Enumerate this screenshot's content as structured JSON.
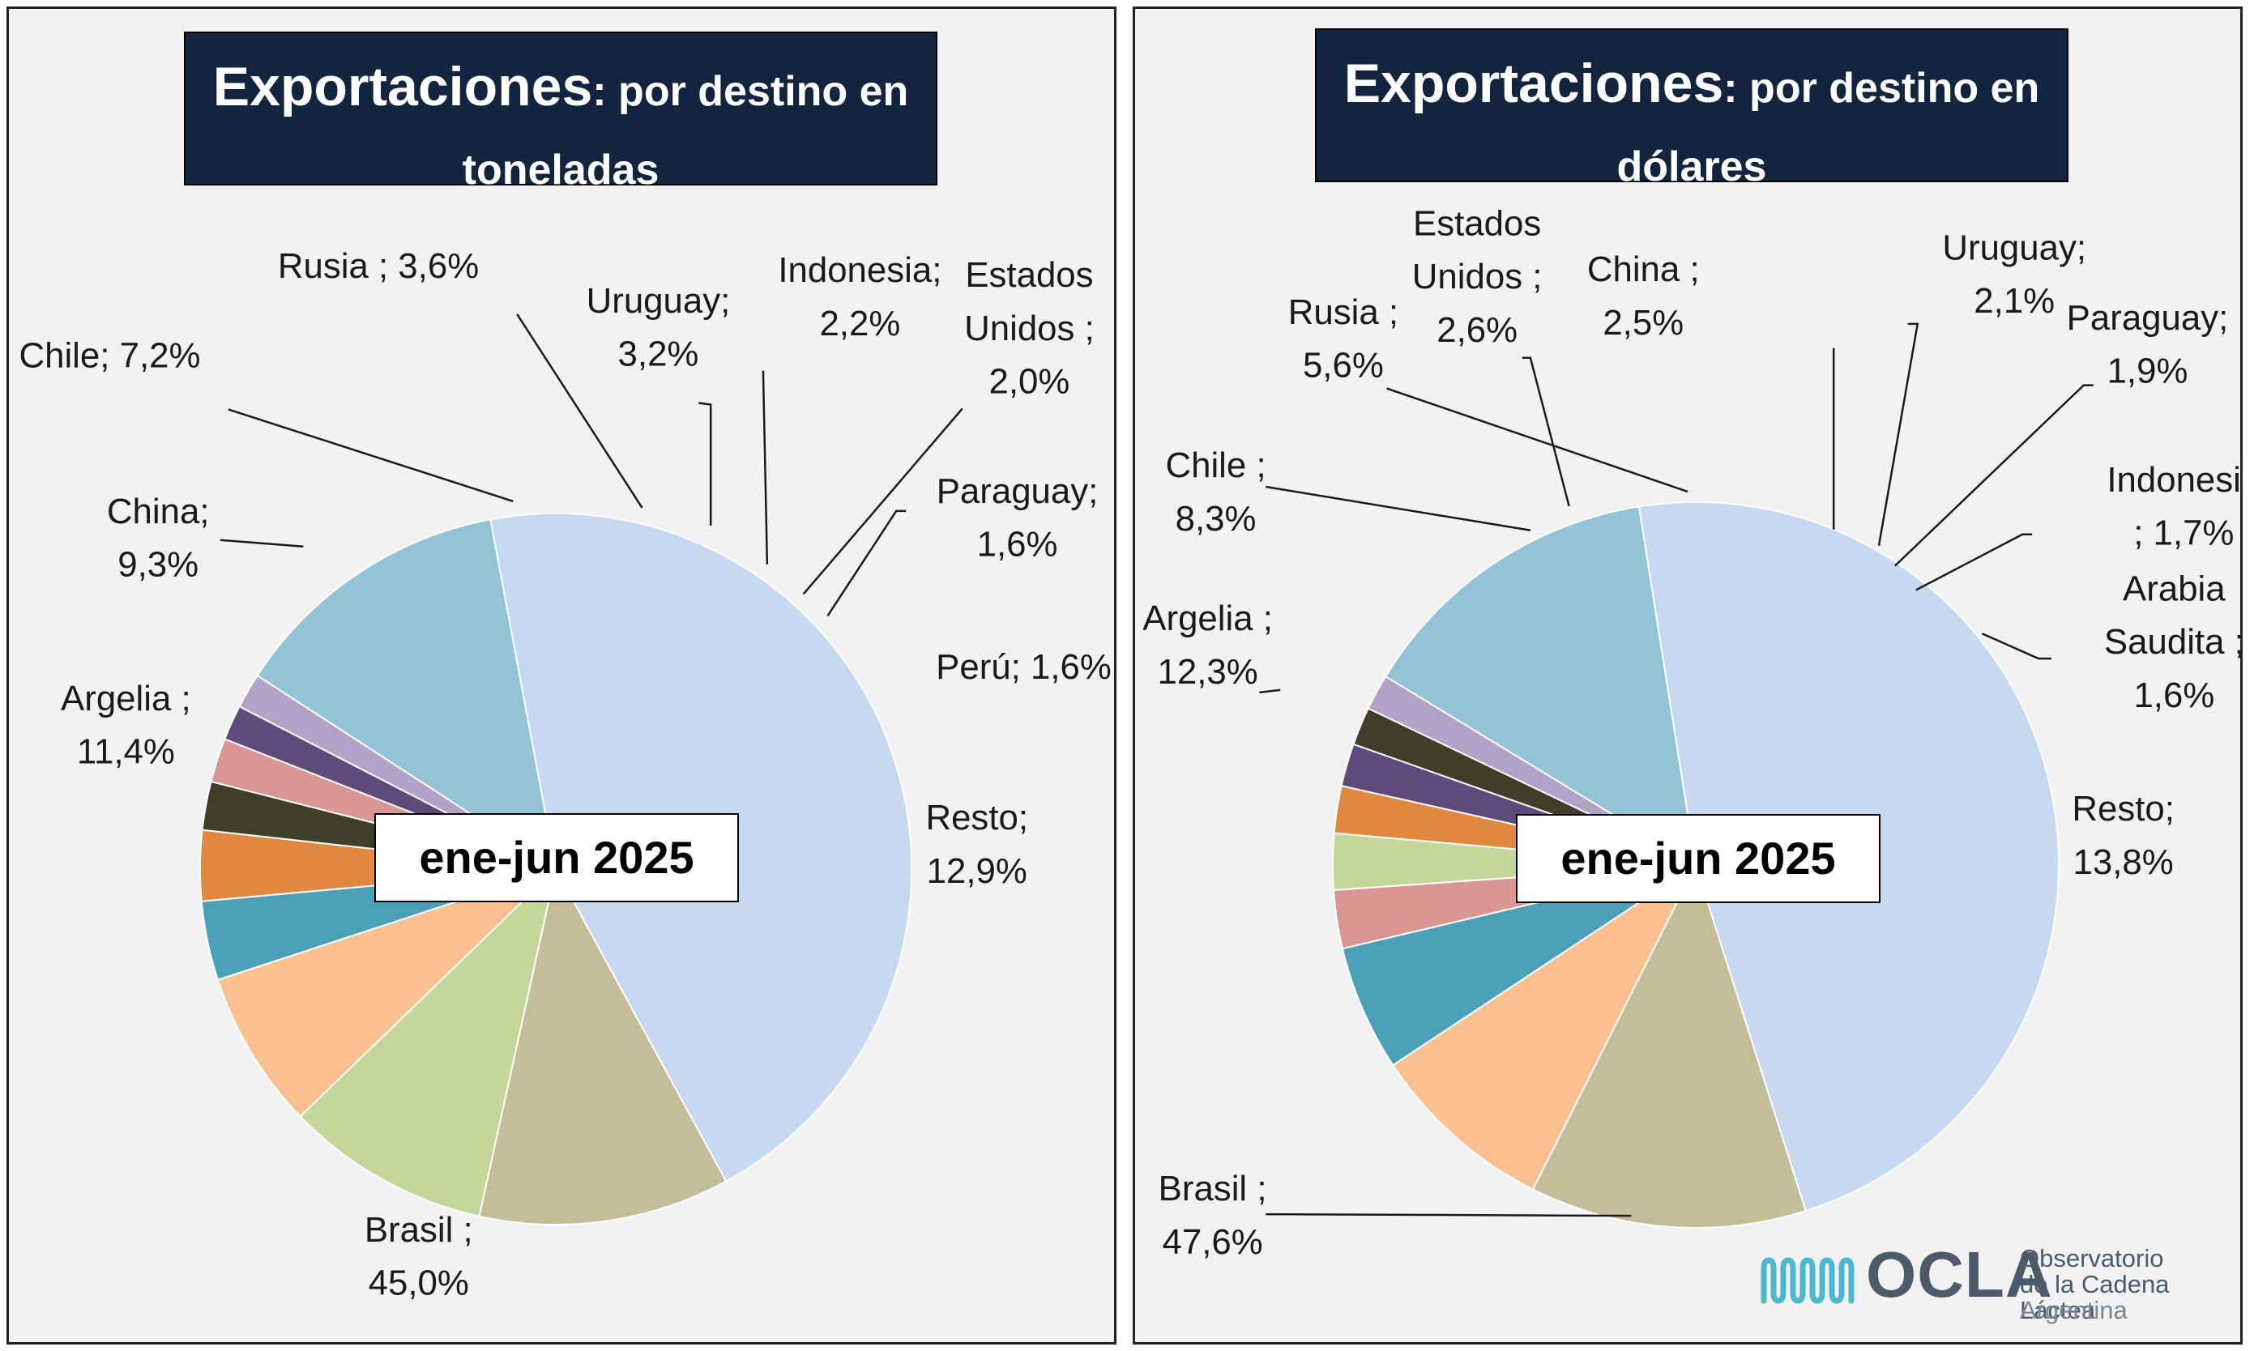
{
  "colors": {
    "title_bg": "#13243f",
    "panel_bg": "#f2f2f2",
    "Brasil": "#c7d9f0",
    "Argelia": "#c4bd97",
    "China": "#c4d79b",
    "Chile": "#fac090",
    "Rusia": "#4ba0b8",
    "Uruguay": "#e08840",
    "Indonesia": "#403d29",
    "Estados Unidos": "#d99694",
    "Paraguay": "#604a7b",
    "Peru": "#b3a2c7",
    "Arabia Saudita": "#b3a2c7",
    "Resto": "#93c4d6",
    "logo_wave": "#4bb8cf"
  },
  "left_panel": {
    "title_main": "Exportaciones",
    "title_rest_line1": ": por destino en",
    "title_line2": "toneladas",
    "period": "ene-jun 2025"
  },
  "right_panel": {
    "title_main": "Exportaciones",
    "title_rest_line1": ": por destino en",
    "title_line2": "dólares",
    "period": "ene-jun 2025"
  },
  "chart_data": [
    {
      "type": "pie",
      "title": "Exportaciones: por destino en toneladas",
      "subtitle": "ene-jun 2025",
      "slices": [
        {
          "name": "Brasil",
          "value": 45.0,
          "label": [
            "Brasil ;",
            "45,0%"
          ]
        },
        {
          "name": "Argelia",
          "value": 11.4,
          "label": [
            "Argelia ;",
            "11,4%"
          ]
        },
        {
          "name": "China",
          "value": 9.3,
          "label": [
            "China;",
            "9,3%"
          ]
        },
        {
          "name": "Chile",
          "value": 7.2,
          "label": [
            "Chile; 7,2%"
          ]
        },
        {
          "name": "Rusia",
          "value": 3.6,
          "label": [
            "Rusia ; 3,6%"
          ]
        },
        {
          "name": "Uruguay",
          "value": 3.2,
          "label": [
            "Uruguay;",
            "3,2%"
          ]
        },
        {
          "name": "Indonesia",
          "value": 2.2,
          "label": [
            "Indonesia;",
            "2,2%"
          ]
        },
        {
          "name": "Estados Unidos",
          "value": 2.0,
          "label": [
            "Estados",
            "Unidos ;",
            "2,0%"
          ]
        },
        {
          "name": "Paraguay",
          "value": 1.6,
          "label": [
            "Paraguay;",
            "1,6%"
          ]
        },
        {
          "name": "Peru",
          "value": 1.6,
          "label": [
            "Perú; 1,6%"
          ]
        },
        {
          "name": "Resto",
          "value": 12.9,
          "label": [
            "Resto;",
            "12,9%"
          ]
        }
      ]
    },
    {
      "type": "pie",
      "title": "Exportaciones: por destino en dólares",
      "subtitle": "ene-jun 2025",
      "slices": [
        {
          "name": "Brasil",
          "value": 47.6,
          "label": [
            "Brasil ;",
            "47,6%"
          ]
        },
        {
          "name": "Argelia",
          "value": 12.3,
          "label": [
            "Argelia ;",
            "12,3%"
          ]
        },
        {
          "name": "Chile",
          "value": 8.3,
          "label": [
            "Chile ;",
            "8,3%"
          ]
        },
        {
          "name": "Rusia",
          "value": 5.6,
          "label": [
            "Rusia ;",
            "5,6%"
          ]
        },
        {
          "name": "Estados Unidos",
          "value": 2.6,
          "label": [
            "Estados",
            "Unidos ;",
            "2,6%"
          ]
        },
        {
          "name": "China",
          "value": 2.5,
          "label": [
            "China ;",
            "2,5%"
          ]
        },
        {
          "name": "Uruguay",
          "value": 2.1,
          "label": [
            "Uruguay;",
            "2,1%"
          ]
        },
        {
          "name": "Paraguay",
          "value": 1.9,
          "label": [
            "Paraguay;",
            "1,9%"
          ]
        },
        {
          "name": "Indonesia",
          "value": 1.7,
          "label": [
            "Indonesia",
            "; 1,7%"
          ]
        },
        {
          "name": "Arabia Saudita",
          "value": 1.6,
          "label": [
            "Arabia",
            "Saudita ;",
            "1,6%"
          ]
        },
        {
          "name": "Resto",
          "value": 13.8,
          "label": [
            "Resto;",
            "13,8%"
          ]
        }
      ]
    }
  ],
  "logo": {
    "acronym": "OCLA",
    "line1": "Observatorio",
    "line2": "de la Cadena Láctea",
    "line3": "Argentina"
  }
}
